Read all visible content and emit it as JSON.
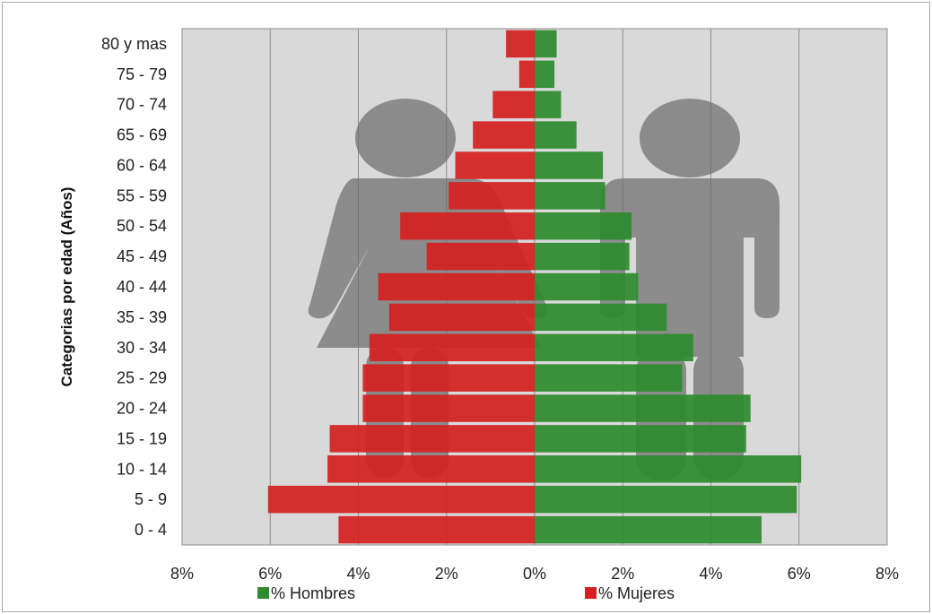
{
  "chart_data": {
    "type": "bar",
    "orientation": "horizontal",
    "title": "",
    "xlabel": "",
    "ylabel": "Categorias por edad (Años)",
    "categories": [
      "0 - 4",
      "5 - 9",
      "10 - 14",
      "15 - 19",
      "20 - 24",
      "25 - 29",
      "30 - 34",
      "35 - 39",
      "40 - 44",
      "45 - 49",
      "50 - 54",
      "55 - 59",
      "60 - 64",
      "65 - 69",
      "70 - 74",
      "75 - 79",
      "80 y mas"
    ],
    "series": [
      {
        "name": "% Hombres",
        "color": "#2e8b2e",
        "values": [
          5.15,
          5.95,
          6.05,
          4.8,
          4.9,
          3.35,
          3.6,
          3.0,
          2.35,
          2.15,
          2.2,
          1.6,
          1.55,
          0.95,
          0.6,
          0.45,
          0.5
        ]
      },
      {
        "name": "% Mujeres",
        "color": "#d42020",
        "values": [
          4.45,
          6.05,
          4.7,
          4.65,
          3.9,
          3.9,
          3.75,
          3.3,
          3.55,
          2.45,
          3.05,
          1.95,
          1.8,
          1.4,
          0.95,
          0.35,
          0.65
        ]
      }
    ],
    "xlim": [
      -8,
      8
    ],
    "x_ticks": [
      "8%",
      "6%",
      "4%",
      "2%",
      "0%",
      "2%",
      "4%",
      "6%",
      "8%"
    ],
    "grid": "vertical",
    "legend": "bottom",
    "background_graphic": "female-and-male-silhouette"
  }
}
